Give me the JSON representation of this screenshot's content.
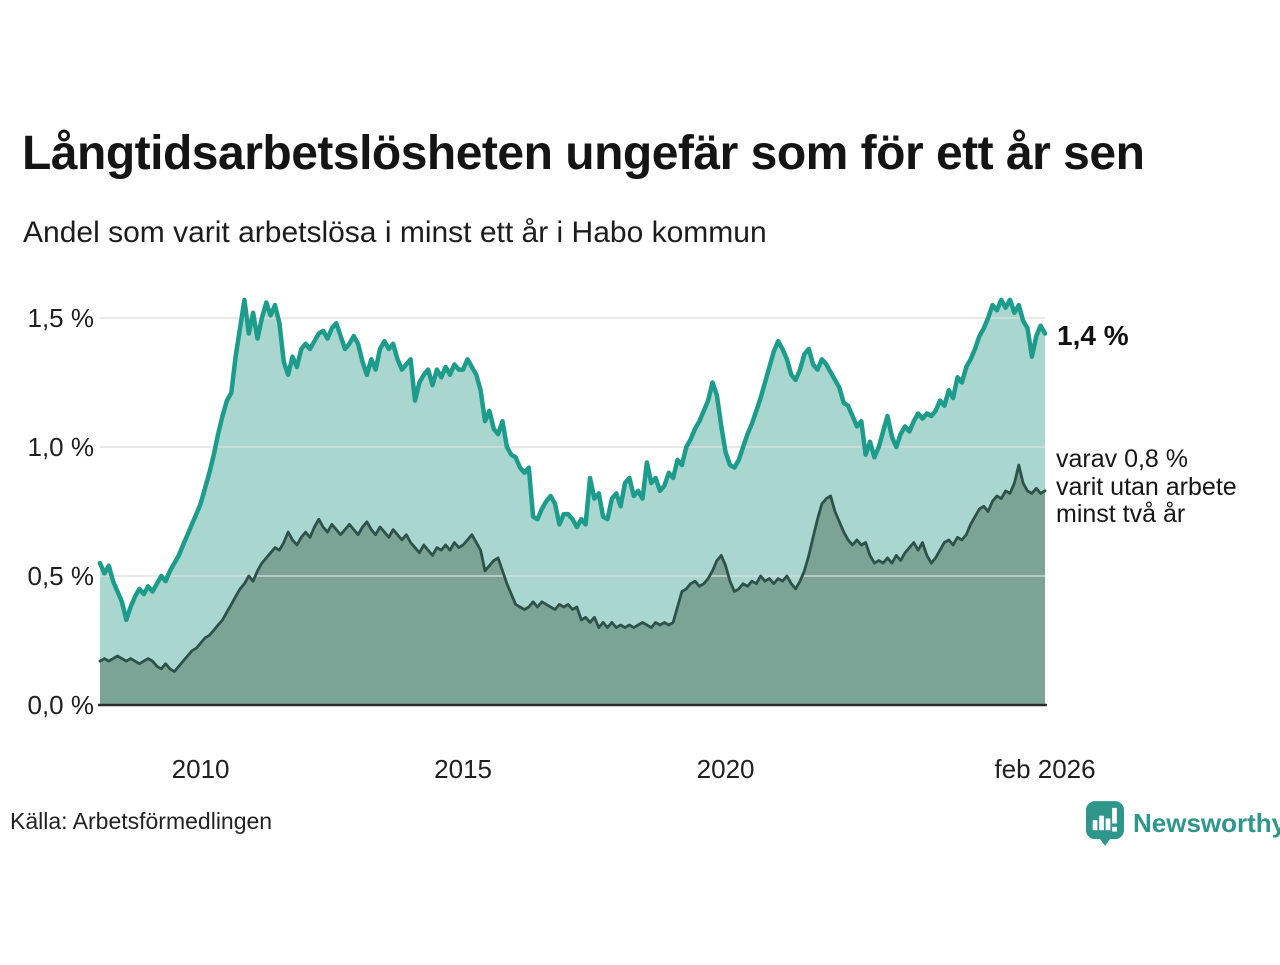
{
  "header": {
    "title": "Långtidsarbetslösheten ungefär som för ett år sen",
    "subtitle": "Andel som varit arbetslösa i minst ett år i Habo kommun"
  },
  "annotations": {
    "end_value_label": "1,4 %",
    "secondary_label": "varav 0,8 %\nvarit utan arbete\nminst två år"
  },
  "footer": {
    "source": "Källa: Arbetsförmedlingen",
    "brand": "Newsworthy",
    "brand_icon": "bar-chart-badge-icon"
  },
  "colors": {
    "line_primary": "#1D9C8C",
    "fill_primary": "#A9D7D0",
    "line_secondary": "#2E5149",
    "fill_secondary": "#7BA497",
    "grid": "#DEDEDE",
    "axis": "#2B2B2B",
    "tick_text": "#1F1F1F",
    "brand": "#2F968B"
  },
  "chart_data": {
    "type": "area",
    "title": "Andel som varit arbetslösa i minst ett år i Habo kommun",
    "x_start": "2008-02",
    "x_end": "2026-02",
    "x_step": "month",
    "ylim": [
      0,
      1.65
    ],
    "grid": true,
    "unit": "%",
    "y_ticks": [
      {
        "value": 0.0,
        "label": "0,0 %"
      },
      {
        "value": 0.5,
        "label": "0,5 %"
      },
      {
        "value": 1.0,
        "label": "1,0 %"
      },
      {
        "value": 1.5,
        "label": "1,5 %"
      }
    ],
    "x_ticks": [
      {
        "index": 23,
        "label": "2010"
      },
      {
        "index": 83,
        "label": "2015"
      },
      {
        "index": 143,
        "label": "2020"
      },
      {
        "index": 216,
        "label": "feb 2026"
      }
    ],
    "series": [
      {
        "name": "Arbetslösa minst ett år",
        "end_value": 1.4,
        "values": [
          0.55,
          0.51,
          0.54,
          0.48,
          0.44,
          0.4,
          0.33,
          0.38,
          0.42,
          0.45,
          0.43,
          0.46,
          0.44,
          0.47,
          0.5,
          0.48,
          0.52,
          0.55,
          0.58,
          0.62,
          0.66,
          0.7,
          0.74,
          0.78,
          0.84,
          0.9,
          0.97,
          1.05,
          1.12,
          1.18,
          1.21,
          1.35,
          1.46,
          1.57,
          1.44,
          1.52,
          1.42,
          1.5,
          1.56,
          1.51,
          1.55,
          1.48,
          1.33,
          1.28,
          1.35,
          1.31,
          1.38,
          1.4,
          1.38,
          1.41,
          1.44,
          1.45,
          1.42,
          1.46,
          1.48,
          1.43,
          1.38,
          1.4,
          1.43,
          1.4,
          1.33,
          1.28,
          1.34,
          1.3,
          1.38,
          1.41,
          1.38,
          1.4,
          1.34,
          1.3,
          1.32,
          1.34,
          1.18,
          1.25,
          1.28,
          1.3,
          1.24,
          1.3,
          1.27,
          1.31,
          1.28,
          1.32,
          1.3,
          1.3,
          1.34,
          1.31,
          1.28,
          1.22,
          1.1,
          1.14,
          1.07,
          1.05,
          1.1,
          1.0,
          0.97,
          0.96,
          0.92,
          0.9,
          0.92,
          0.73,
          0.72,
          0.76,
          0.79,
          0.81,
          0.78,
          0.7,
          0.74,
          0.74,
          0.72,
          0.69,
          0.72,
          0.7,
          0.88,
          0.8,
          0.82,
          0.73,
          0.72,
          0.8,
          0.82,
          0.77,
          0.86,
          0.88,
          0.81,
          0.83,
          0.8,
          0.94,
          0.86,
          0.88,
          0.83,
          0.85,
          0.9,
          0.88,
          0.95,
          0.93,
          1.0,
          1.03,
          1.07,
          1.1,
          1.14,
          1.18,
          1.25,
          1.2,
          1.08,
          0.98,
          0.93,
          0.92,
          0.95,
          1.0,
          1.05,
          1.09,
          1.14,
          1.19,
          1.25,
          1.31,
          1.37,
          1.41,
          1.38,
          1.34,
          1.28,
          1.26,
          1.3,
          1.36,
          1.38,
          1.32,
          1.3,
          1.34,
          1.32,
          1.29,
          1.26,
          1.23,
          1.17,
          1.16,
          1.12,
          1.08,
          1.1,
          0.97,
          1.02,
          0.96,
          1.0,
          1.06,
          1.12,
          1.04,
          1.0,
          1.05,
          1.08,
          1.06,
          1.1,
          1.13,
          1.11,
          1.13,
          1.12,
          1.14,
          1.18,
          1.16,
          1.22,
          1.19,
          1.27,
          1.25,
          1.31,
          1.34,
          1.38,
          1.43,
          1.46,
          1.5,
          1.55,
          1.53,
          1.57,
          1.54,
          1.57,
          1.52,
          1.55,
          1.49,
          1.46,
          1.35,
          1.43,
          1.47,
          1.44
        ]
      },
      {
        "name": "Arbetslösa minst två år",
        "end_value": 0.8,
        "values": [
          0.17,
          0.18,
          0.17,
          0.18,
          0.19,
          0.18,
          0.17,
          0.18,
          0.17,
          0.16,
          0.17,
          0.18,
          0.17,
          0.15,
          0.14,
          0.16,
          0.14,
          0.13,
          0.15,
          0.17,
          0.19,
          0.21,
          0.22,
          0.24,
          0.26,
          0.27,
          0.29,
          0.31,
          0.33,
          0.36,
          0.39,
          0.42,
          0.45,
          0.47,
          0.5,
          0.48,
          0.52,
          0.55,
          0.57,
          0.59,
          0.61,
          0.6,
          0.63,
          0.67,
          0.64,
          0.62,
          0.65,
          0.67,
          0.65,
          0.69,
          0.72,
          0.69,
          0.67,
          0.7,
          0.68,
          0.66,
          0.68,
          0.7,
          0.68,
          0.66,
          0.69,
          0.71,
          0.68,
          0.66,
          0.69,
          0.67,
          0.65,
          0.68,
          0.66,
          0.64,
          0.66,
          0.63,
          0.61,
          0.59,
          0.62,
          0.6,
          0.58,
          0.61,
          0.6,
          0.62,
          0.6,
          0.63,
          0.61,
          0.62,
          0.64,
          0.66,
          0.63,
          0.6,
          0.52,
          0.54,
          0.56,
          0.57,
          0.52,
          0.47,
          0.43,
          0.39,
          0.38,
          0.37,
          0.38,
          0.4,
          0.38,
          0.4,
          0.39,
          0.38,
          0.37,
          0.39,
          0.38,
          0.39,
          0.37,
          0.38,
          0.33,
          0.34,
          0.32,
          0.34,
          0.3,
          0.32,
          0.3,
          0.32,
          0.3,
          0.31,
          0.3,
          0.31,
          0.3,
          0.31,
          0.32,
          0.31,
          0.3,
          0.32,
          0.31,
          0.32,
          0.31,
          0.32,
          0.38,
          0.44,
          0.45,
          0.47,
          0.48,
          0.46,
          0.47,
          0.49,
          0.52,
          0.56,
          0.58,
          0.54,
          0.48,
          0.44,
          0.45,
          0.47,
          0.46,
          0.48,
          0.47,
          0.5,
          0.48,
          0.49,
          0.47,
          0.49,
          0.48,
          0.5,
          0.47,
          0.45,
          0.48,
          0.52,
          0.58,
          0.65,
          0.72,
          0.78,
          0.8,
          0.81,
          0.75,
          0.71,
          0.67,
          0.64,
          0.62,
          0.64,
          0.62,
          0.63,
          0.58,
          0.55,
          0.56,
          0.55,
          0.57,
          0.55,
          0.58,
          0.56,
          0.59,
          0.61,
          0.63,
          0.6,
          0.63,
          0.58,
          0.55,
          0.57,
          0.6,
          0.63,
          0.64,
          0.62,
          0.65,
          0.64,
          0.66,
          0.7,
          0.73,
          0.76,
          0.77,
          0.75,
          0.79,
          0.81,
          0.8,
          0.83,
          0.82,
          0.86,
          0.93,
          0.86,
          0.83,
          0.82,
          0.84,
          0.82,
          0.83
        ]
      }
    ]
  }
}
